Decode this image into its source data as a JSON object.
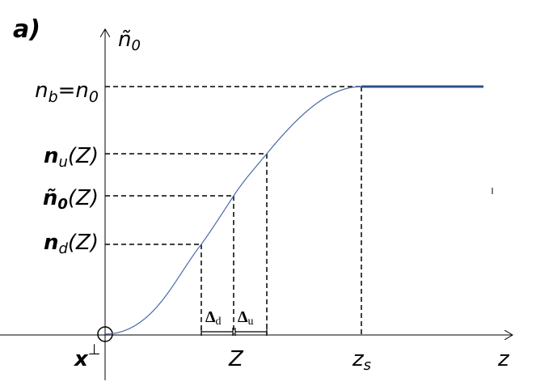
{
  "header": {
    "panel_label": "a)"
  },
  "axes": {
    "y_label": {
      "main": "ñ",
      "sub": "0"
    },
    "x_label": "z",
    "origin_label": {
      "main": "x",
      "sup": "⊥"
    }
  },
  "y_labels": [
    {
      "main": "n",
      "sub": "b",
      "rest": "=n",
      "sub2": "0"
    },
    {
      "main": "n",
      "sub": "u",
      "rest": "(Z)"
    },
    {
      "main": "ñ",
      "sub": "0",
      "rest": "(Z)"
    },
    {
      "main": "n",
      "sub": "d",
      "rest": "(Z)"
    }
  ],
  "x_labels": [
    {
      "main": "Z"
    },
    {
      "main": "z",
      "sub": "s"
    }
  ],
  "deltas": [
    {
      "main": "Δ",
      "sub": "d"
    },
    {
      "main": "Δ",
      "sub": "u"
    }
  ]
}
